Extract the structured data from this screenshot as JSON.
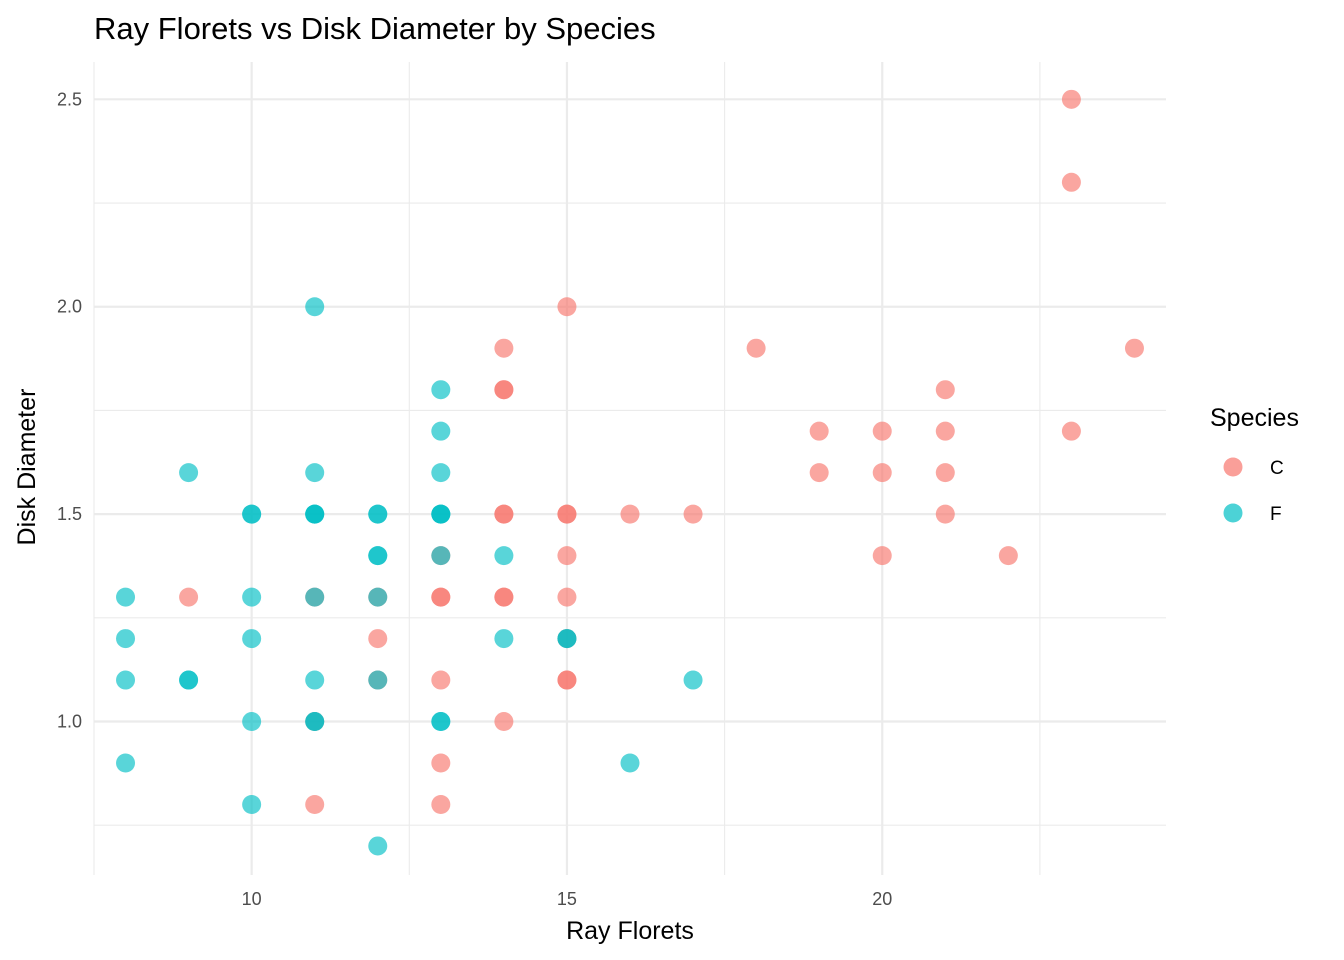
{
  "chart_data": {
    "type": "scatter",
    "title": "Ray Florets vs Disk Diameter by Species",
    "xlabel": "Ray Florets",
    "ylabel": "Disk Diameter",
    "xlim": [
      7.5,
      24.5
    ],
    "ylim": [
      0.63,
      2.59
    ],
    "x_ticks": [
      10,
      15,
      20
    ],
    "y_ticks": [
      1.0,
      1.5,
      2.0,
      2.5
    ],
    "x_tick_labels": [
      "10",
      "15",
      "20"
    ],
    "y_tick_labels": [
      "1.0",
      "1.5",
      "2.0",
      "2.5"
    ],
    "grid": true,
    "legend": {
      "title": "Species",
      "placement": "right"
    },
    "series": [
      {
        "name": "C",
        "color": "#F8766D",
        "points": [
          [
            23,
            2.5
          ],
          [
            23,
            2.3
          ],
          [
            15,
            2.0
          ],
          [
            14,
            1.9
          ],
          [
            18,
            1.9
          ],
          [
            24,
            1.9
          ],
          [
            14,
            1.8
          ],
          [
            14,
            1.8
          ],
          [
            21,
            1.8
          ],
          [
            19,
            1.7
          ],
          [
            20,
            1.7
          ],
          [
            21,
            1.7
          ],
          [
            23,
            1.7
          ],
          [
            19,
            1.6
          ],
          [
            20,
            1.6
          ],
          [
            21,
            1.6
          ],
          [
            14,
            1.5
          ],
          [
            14,
            1.5
          ],
          [
            15,
            1.5
          ],
          [
            15,
            1.5
          ],
          [
            16,
            1.5
          ],
          [
            17,
            1.5
          ],
          [
            21,
            1.5
          ],
          [
            13,
            1.4
          ],
          [
            15,
            1.4
          ],
          [
            20,
            1.4
          ],
          [
            22,
            1.4
          ],
          [
            9,
            1.3
          ],
          [
            11,
            1.3
          ],
          [
            12,
            1.3
          ],
          [
            13,
            1.3
          ],
          [
            13,
            1.3
          ],
          [
            14,
            1.3
          ],
          [
            14,
            1.3
          ],
          [
            15,
            1.3
          ],
          [
            12,
            1.2
          ],
          [
            15,
            1.2
          ],
          [
            12,
            1.1
          ],
          [
            13,
            1.1
          ],
          [
            15,
            1.1
          ],
          [
            15,
            1.1
          ],
          [
            11,
            1.0
          ],
          [
            14,
            1.0
          ],
          [
            13,
            0.9
          ],
          [
            11,
            0.8
          ],
          [
            13,
            0.8
          ]
        ]
      },
      {
        "name": "F",
        "color": "#00BFC4",
        "points": [
          [
            11,
            2.0
          ],
          [
            13,
            1.8
          ],
          [
            13,
            1.7
          ],
          [
            9,
            1.6
          ],
          [
            11,
            1.6
          ],
          [
            13,
            1.6
          ],
          [
            10,
            1.5
          ],
          [
            10,
            1.5
          ],
          [
            11,
            1.5
          ],
          [
            11,
            1.5
          ],
          [
            11,
            1.5
          ],
          [
            12,
            1.5
          ],
          [
            12,
            1.5
          ],
          [
            13,
            1.5
          ],
          [
            13,
            1.5
          ],
          [
            13,
            1.5
          ],
          [
            12,
            1.4
          ],
          [
            12,
            1.4
          ],
          [
            13,
            1.4
          ],
          [
            14,
            1.4
          ],
          [
            8,
            1.3
          ],
          [
            10,
            1.3
          ],
          [
            11,
            1.3
          ],
          [
            12,
            1.3
          ],
          [
            8,
            1.2
          ],
          [
            10,
            1.2
          ],
          [
            14,
            1.2
          ],
          [
            15,
            1.2
          ],
          [
            15,
            1.2
          ],
          [
            8,
            1.1
          ],
          [
            9,
            1.1
          ],
          [
            9,
            1.1
          ],
          [
            11,
            1.1
          ],
          [
            12,
            1.1
          ],
          [
            17,
            1.1
          ],
          [
            10,
            1.0
          ],
          [
            11,
            1.0
          ],
          [
            11,
            1.0
          ],
          [
            13,
            1.0
          ],
          [
            13,
            1.0
          ],
          [
            8,
            0.9
          ],
          [
            16,
            0.9
          ],
          [
            10,
            0.8
          ],
          [
            12,
            0.7
          ]
        ]
      }
    ]
  }
}
